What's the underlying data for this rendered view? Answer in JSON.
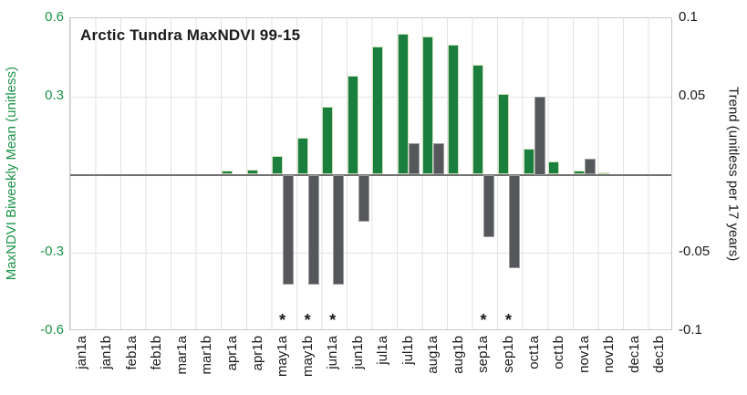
{
  "title": "Arctic Tundra MaxNDVI 99-15",
  "left_axis": {
    "label": "MaxNDVI Biweekly Mean (unitless)",
    "ticks": [
      "0.6",
      "0.3",
      "-0.3",
      "-0.6"
    ],
    "tick_values": [
      0.6,
      0.3,
      -0.3,
      -0.6
    ],
    "color": "#1d9348"
  },
  "right_axis": {
    "label": "Trend (unitless per 17 years)",
    "ticks": [
      "0.1",
      "0.05",
      "-0.05",
      "-0.1"
    ],
    "tick_values": [
      0.1,
      0.05,
      -0.05,
      -0.1
    ],
    "color": "#1a1a1a"
  },
  "significance_marker": "*",
  "chart_data": {
    "type": "bar",
    "categories": [
      "jan1a",
      "jan1b",
      "feb1a",
      "feb1b",
      "mar1a",
      "mar1b",
      "apr1a",
      "apr1b",
      "may1a",
      "may1b",
      "jun1a",
      "jun1b",
      "jul1a",
      "jul1b",
      "aug1a",
      "aug1b",
      "sep1a",
      "sep1b",
      "oct1a",
      "oct1b",
      "nov1a",
      "nov1b",
      "dec1a",
      "dec1b"
    ],
    "series": [
      {
        "name": "MaxNDVI Biweekly Mean",
        "axis": "left",
        "color": "#1a7f3e",
        "border_color": "#cde0b8",
        "values": [
          0,
          0,
          0,
          0,
          0,
          0,
          0.015,
          0.02,
          0.07,
          0.14,
          0.26,
          0.38,
          0.49,
          0.54,
          0.53,
          0.5,
          0.42,
          0.31,
          0.1,
          0.05,
          0.015,
          0.01,
          0,
          0
        ]
      },
      {
        "name": "Trend",
        "axis": "right",
        "color": "#55575b",
        "border_color": "#9b9da0",
        "values": [
          0,
          0,
          0,
          0,
          0,
          0,
          0,
          0,
          -0.07,
          -0.07,
          -0.07,
          -0.03,
          0,
          0.02,
          0.02,
          0,
          -0.04,
          -0.06,
          0.05,
          0,
          0.01,
          0,
          0,
          0
        ]
      }
    ],
    "significant_categories": [
      "may1a",
      "may1b",
      "jun1a",
      "sep1a",
      "sep1b"
    ],
    "left_ylim": [
      -0.6,
      0.6
    ],
    "right_ylim": [
      -0.1,
      0.1
    ],
    "grid": true,
    "legend_position": "none"
  }
}
